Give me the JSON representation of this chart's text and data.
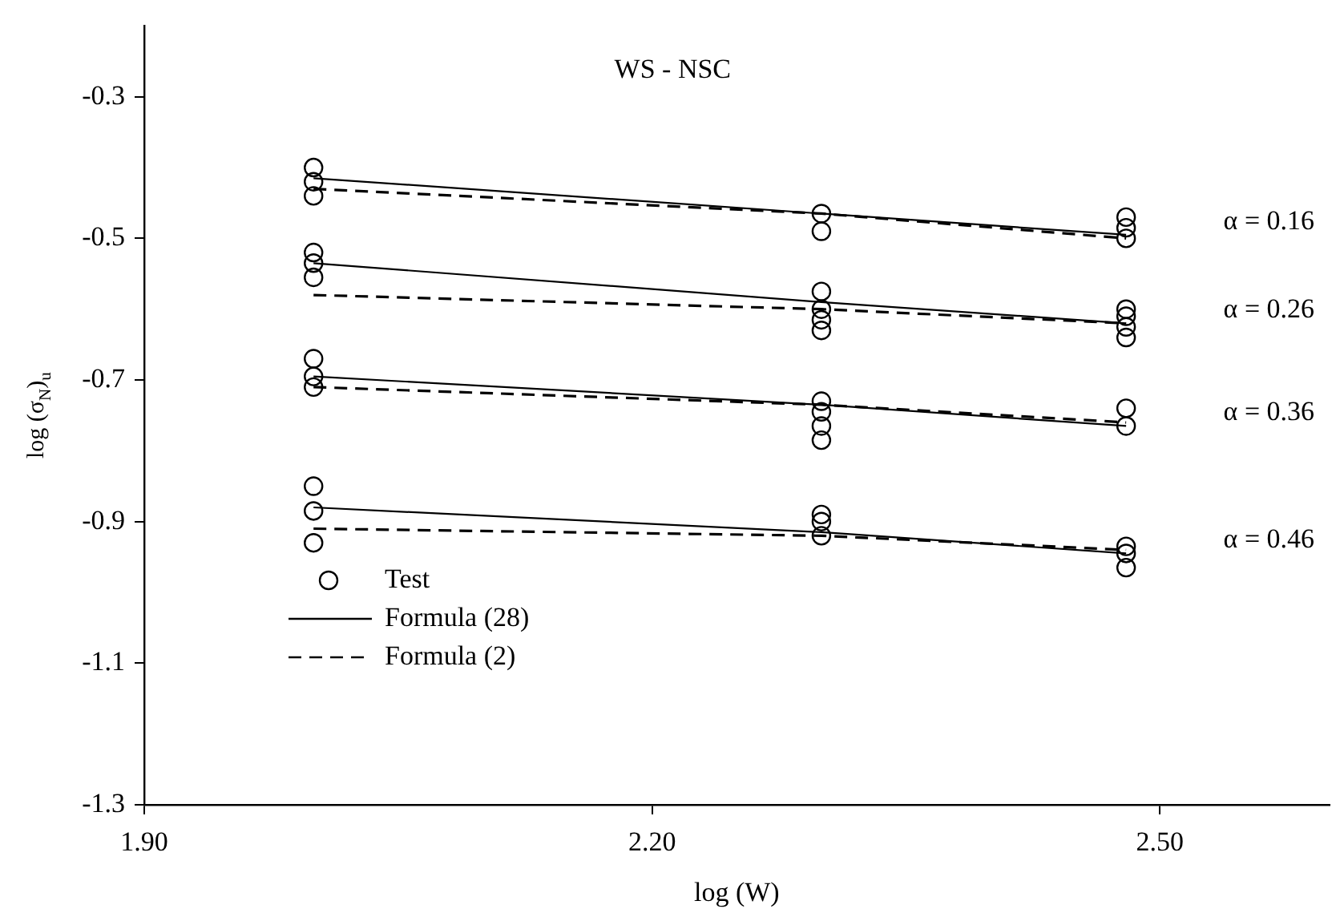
{
  "chart_data": {
    "type": "scatter",
    "title": "WS - NSC",
    "xlabel": "log (W)",
    "ylabel": "log (σ$_{N}$)$_{u}$",
    "xlim": [
      1.9,
      2.6
    ],
    "xticks": [
      {
        "value": 1.9,
        "label": "1.90"
      },
      {
        "value": 2.2,
        "label": "2.20"
      },
      {
        "value": 2.5,
        "label": "2.50"
      }
    ],
    "ylim": [
      -1.3,
      -0.2
    ],
    "yticks": [
      -0.3,
      -0.5,
      -0.7,
      -0.9,
      -1.1,
      -1.3
    ],
    "grid": false,
    "legend": "bottom left",
    "series": [
      {
        "name": "Test",
        "marker": "circle",
        "color": "#000000",
        "x": [
          2.0,
          2.0,
          2.0,
          2.3,
          2.3,
          2.48,
          2.48,
          2.48,
          2.0,
          2.0,
          2.0,
          2.3,
          2.3,
          2.3,
          2.3,
          2.48,
          2.48,
          2.48,
          2.48,
          2.0,
          2.0,
          2.0,
          2.3,
          2.3,
          2.3,
          2.3,
          2.48,
          2.48,
          2.0,
          2.0,
          2.0,
          2.3,
          2.3,
          2.3,
          2.48,
          2.48,
          2.48
        ],
        "values": [
          -0.4,
          -0.42,
          -0.44,
          -0.465,
          -0.49,
          -0.47,
          -0.485,
          -0.5,
          -0.52,
          -0.535,
          -0.555,
          -0.575,
          -0.6,
          -0.615,
          -0.63,
          -0.6,
          -0.61,
          -0.625,
          -0.64,
          -0.67,
          -0.695,
          -0.71,
          -0.73,
          -0.745,
          -0.765,
          -0.785,
          -0.74,
          -0.765,
          -0.85,
          -0.885,
          -0.93,
          -0.89,
          -0.9,
          -0.92,
          -0.935,
          -0.945,
          -0.965
        ]
      },
      {
        "name": "Formula (28)",
        "type": "line",
        "marker": "none",
        "line_style": "solid",
        "color": "#000000",
        "x": [
          2.0,
          2.3,
          2.48
        ],
        "values": [
          -0.415,
          -0.465,
          -0.495
        ]
      },
      {
        "type": "line",
        "marker": "none",
        "line_style": "solid",
        "color": "#000000",
        "x": [
          2.0,
          2.3,
          2.48
        ],
        "values": [
          -0.535,
          -0.59,
          -0.62
        ]
      },
      {
        "type": "line",
        "marker": "none",
        "line_style": "solid",
        "color": "#000000",
        "x": [
          2.0,
          2.3,
          2.48
        ],
        "values": [
          -0.695,
          -0.735,
          -0.765
        ]
      },
      {
        "type": "line",
        "marker": "none",
        "line_style": "solid",
        "color": "#000000",
        "x": [
          2.0,
          2.3,
          2.48
        ],
        "values": [
          -0.88,
          -0.915,
          -0.945
        ]
      },
      {
        "name": "Formula (2)",
        "type": "line",
        "marker": "none",
        "line_style": "dashed",
        "color": "#000000",
        "x": [
          2.0,
          2.3,
          2.48
        ],
        "values": [
          -0.43,
          -0.465,
          -0.5
        ]
      },
      {
        "type": "line",
        "marker": "none",
        "line_style": "dashed",
        "color": "#000000",
        "x": [
          2.0,
          2.3,
          2.48
        ],
        "values": [
          -0.58,
          -0.6,
          -0.62
        ]
      },
      {
        "type": "line",
        "marker": "none",
        "line_style": "dashed",
        "color": "#000000",
        "x": [
          2.0,
          2.3,
          2.48
        ],
        "values": [
          -0.71,
          -0.735,
          -0.76
        ]
      },
      {
        "type": "line",
        "marker": "none",
        "line_style": "dashed",
        "color": "#000000",
        "x": [
          2.0,
          2.3,
          2.48
        ],
        "values": [
          -0.91,
          -0.92,
          -0.94
        ]
      }
    ],
    "annotations": [
      "α = 0.16",
      "α = 0.26",
      "α = 0.36",
      "α = 0.46"
    ]
  }
}
